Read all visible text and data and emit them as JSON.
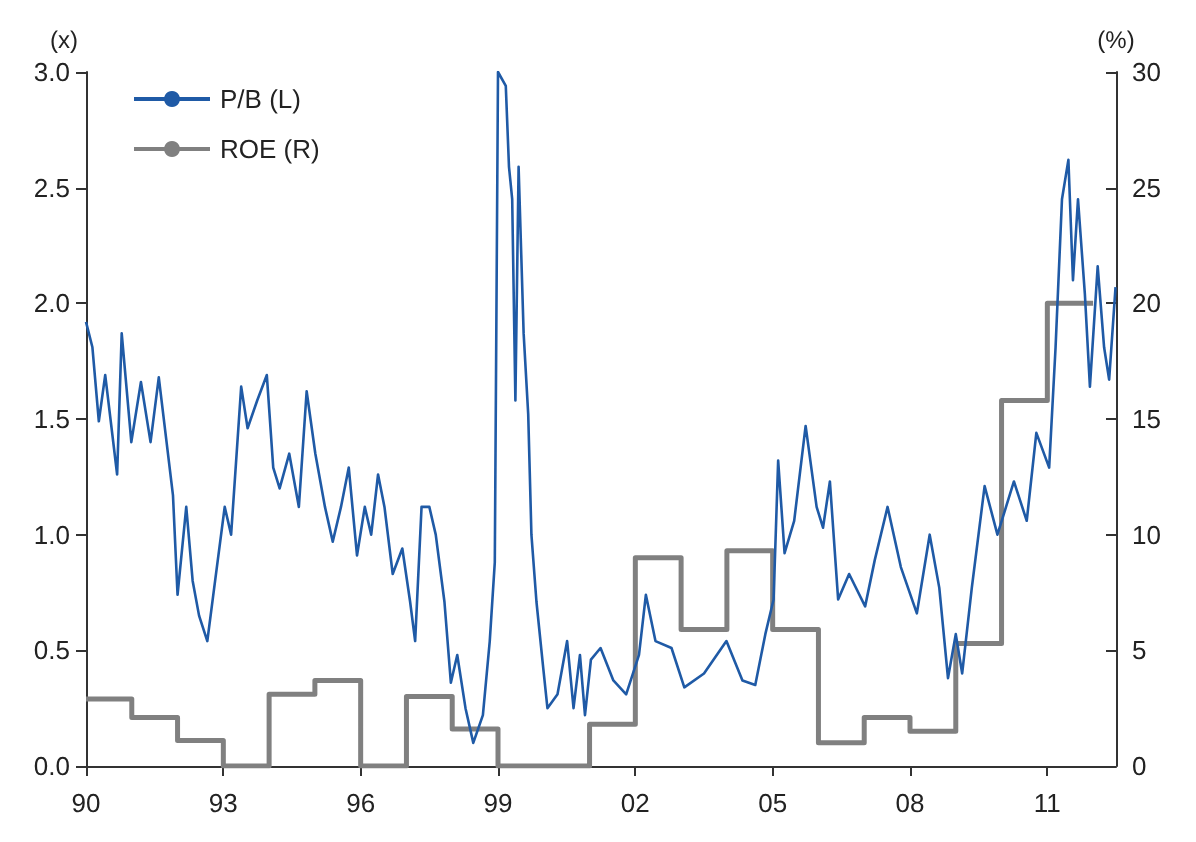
{
  "chart_data": {
    "type": "line",
    "ylabel": "(x)",
    "y2label": "(%)",
    "xlim": [
      1990,
      2012.5
    ],
    "xticks": [
      {
        "value": 1990,
        "label": "90"
      },
      {
        "value": 1993,
        "label": "93"
      },
      {
        "value": 1996,
        "label": "96"
      },
      {
        "value": 1999,
        "label": "99"
      },
      {
        "value": 2002,
        "label": "02"
      },
      {
        "value": 2005,
        "label": "05"
      },
      {
        "value": 2008,
        "label": "08"
      },
      {
        "value": 2011,
        "label": "11"
      }
    ],
    "ylim": [
      0,
      3
    ],
    "yticks": [
      {
        "value": 0,
        "label": "0.0"
      },
      {
        "value": 0.5,
        "label": "0.5"
      },
      {
        "value": 1,
        "label": "1.0"
      },
      {
        "value": 1.5,
        "label": "1.5"
      },
      {
        "value": 2,
        "label": "2.0"
      },
      {
        "value": 2.5,
        "label": "2.5"
      },
      {
        "value": 3,
        "label": "3.0"
      }
    ],
    "y2lim": [
      0,
      30
    ],
    "y2ticks": [
      0,
      5,
      10,
      15,
      20,
      25,
      30
    ],
    "legend": "top left",
    "grid": false,
    "series": [
      {
        "name": "P/B (L)",
        "color": "#1f5aa6",
        "x": [
          1990.0,
          1990.14,
          1990.28,
          1990.42,
          1990.68,
          1990.78,
          1990.99,
          1991.2,
          1991.41,
          1991.59,
          1991.76,
          1991.9,
          1992.0,
          1992.19,
          1992.33,
          1992.47,
          1992.65,
          1992.82,
          1993.03,
          1993.17,
          1993.39,
          1993.53,
          1993.74,
          1993.95,
          1994.09,
          1994.23,
          1994.44,
          1994.65,
          1994.82,
          1995.01,
          1995.22,
          1995.39,
          1995.57,
          1995.74,
          1995.92,
          1996.09,
          1996.23,
          1996.38,
          1996.52,
          1996.7,
          1996.91,
          1997.08,
          1997.19,
          1997.33,
          1997.5,
          1997.64,
          1997.83,
          1997.97,
          1998.11,
          1998.29,
          1998.46,
          1998.67,
          1998.82,
          1998.93,
          1999.0,
          1999.17,
          1999.24,
          1999.31,
          1999.38,
          1999.45,
          1999.56,
          1999.66,
          1999.73,
          1999.84,
          1999.99,
          2000.08,
          2000.3,
          2000.51,
          2000.65,
          2000.79,
          2000.9,
          2001.03,
          2001.24,
          2001.52,
          2001.8,
          2002.08,
          2002.23,
          2002.44,
          2002.79,
          2003.07,
          2003.5,
          2003.99,
          2004.34,
          2004.62,
          2004.84,
          2005.02,
          2005.12,
          2005.26,
          2005.47,
          2005.72,
          2005.96,
          2006.1,
          2006.25,
          2006.43,
          2006.67,
          2007.02,
          2007.23,
          2007.51,
          2007.8,
          2008.15,
          2008.43,
          2008.64,
          2008.83,
          2009.0,
          2009.14,
          2009.35,
          2009.63,
          2009.91,
          2010.27,
          2010.55,
          2010.76,
          2011.04,
          2011.18,
          2011.32,
          2011.46,
          2011.56,
          2011.67,
          2011.82,
          2011.93,
          2012.1,
          2012.24,
          2012.35,
          2012.49
        ],
        "values": [
          1.92,
          1.81,
          1.49,
          1.69,
          1.26,
          1.87,
          1.4,
          1.66,
          1.4,
          1.68,
          1.4,
          1.17,
          0.74,
          1.12,
          0.8,
          0.65,
          0.54,
          0.8,
          1.12,
          1.0,
          1.64,
          1.46,
          1.58,
          1.69,
          1.29,
          1.2,
          1.35,
          1.12,
          1.62,
          1.35,
          1.12,
          0.97,
          1.12,
          1.29,
          0.91,
          1.12,
          1.0,
          1.26,
          1.12,
          0.83,
          0.94,
          0.71,
          0.54,
          1.12,
          1.12,
          1.0,
          0.71,
          0.36,
          0.48,
          0.25,
          0.1,
          0.22,
          0.54,
          0.88,
          3.0,
          2.94,
          2.59,
          2.45,
          1.58,
          2.59,
          1.87,
          1.52,
          1.0,
          0.71,
          0.42,
          0.25,
          0.31,
          0.54,
          0.25,
          0.48,
          0.22,
          0.46,
          0.51,
          0.37,
          0.31,
          0.48,
          0.74,
          0.54,
          0.51,
          0.34,
          0.4,
          0.54,
          0.37,
          0.35,
          0.57,
          0.72,
          1.32,
          0.92,
          1.06,
          1.47,
          1.12,
          1.03,
          1.23,
          0.72,
          0.83,
          0.69,
          0.89,
          1.12,
          0.86,
          0.66,
          1.0,
          0.77,
          0.38,
          0.57,
          0.4,
          0.77,
          1.21,
          1.0,
          1.23,
          1.06,
          1.44,
          1.29,
          1.81,
          2.45,
          2.62,
          2.1,
          2.45,
          2.04,
          1.64,
          2.16,
          1.81,
          1.67,
          2.07
        ]
      },
      {
        "name": "ROE (R)",
        "type": "step",
        "axis": "y2",
        "color": "#808080",
        "x": [
          1990,
          1991,
          1992,
          1993,
          1994,
          1995,
          1996,
          1997,
          1998,
          1999,
          2000,
          2001,
          2002,
          2003,
          2004,
          2005,
          2006,
          2007,
          2008,
          2009,
          2010,
          2011,
          2012
        ],
        "values": [
          2.9,
          2.1,
          1.1,
          0,
          3.1,
          3.7,
          0,
          3.0,
          1.6,
          0,
          0,
          1.8,
          9.0,
          5.9,
          9.3,
          5.9,
          1.0,
          2.1,
          1.5,
          5.3,
          15.8,
          20,
          20
        ]
      }
    ]
  }
}
